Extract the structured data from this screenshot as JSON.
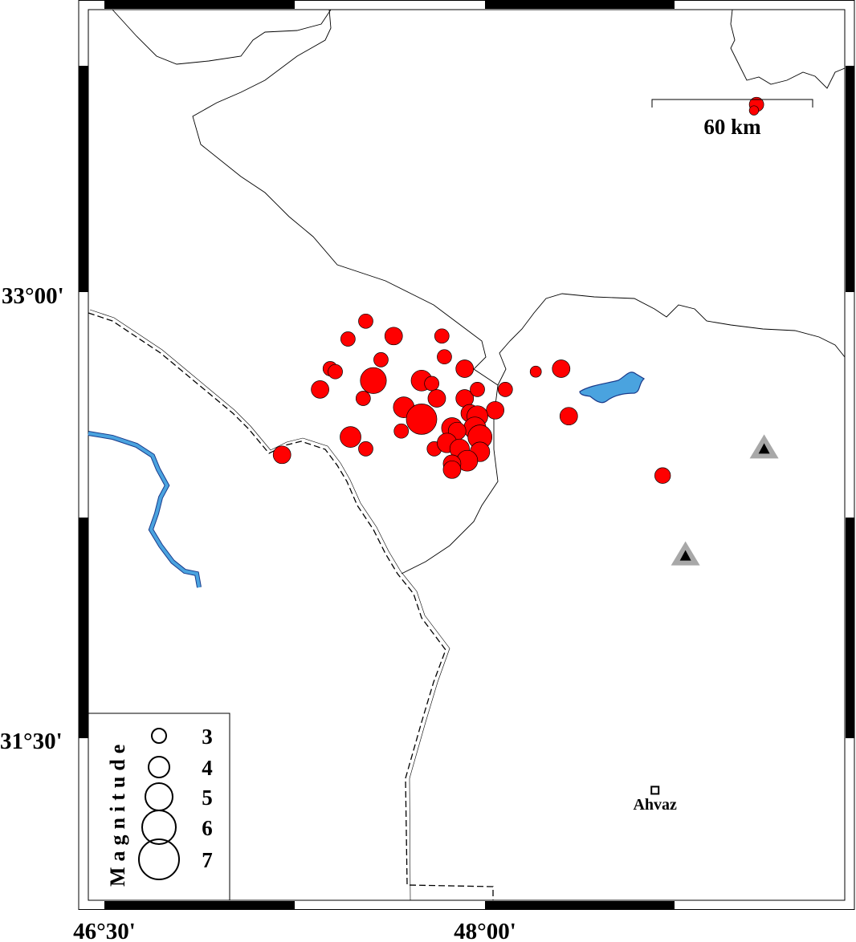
{
  "map": {
    "axis_labels": {
      "lat": [
        {
          "value": 33.0,
          "label": "33°00'"
        },
        {
          "value": 31.5,
          "label": "31°30'"
        }
      ],
      "lon": [
        {
          "value": 46.5,
          "label": "46°30'"
        },
        {
          "value": 48.0,
          "label": "48°00'"
        }
      ]
    },
    "scale_bar": {
      "label": "60 km"
    },
    "city": {
      "name": "Ahvaz",
      "lon": 48.67,
      "lat": 31.33
    },
    "stations": [
      {
        "lon": 49.1,
        "lat": 32.48
      },
      {
        "lon": 48.79,
        "lat": 32.12
      }
    ],
    "colors": {
      "event": "#ff0000",
      "water": "#4aa3df",
      "station": "#a8a8a8"
    },
    "legend": {
      "title": "Magnitude",
      "items": [
        {
          "mag": 3,
          "label": "3"
        },
        {
          "mag": 4,
          "label": "4"
        },
        {
          "mag": 5,
          "label": "5"
        },
        {
          "mag": 6,
          "label": "6"
        },
        {
          "mag": 7,
          "label": "7"
        }
      ]
    },
    "events": [
      {
        "lon": 47.53,
        "lat": 32.91,
        "mag": 3.0
      },
      {
        "lon": 47.46,
        "lat": 32.85,
        "mag": 3.0
      },
      {
        "lon": 47.64,
        "lat": 32.86,
        "mag": 3.5
      },
      {
        "lon": 47.83,
        "lat": 32.86,
        "mag": 3.0
      },
      {
        "lon": 47.59,
        "lat": 32.78,
        "mag": 3.0
      },
      {
        "lon": 47.84,
        "lat": 32.79,
        "mag": 3.0
      },
      {
        "lon": 47.39,
        "lat": 32.75,
        "mag": 3.0
      },
      {
        "lon": 47.41,
        "lat": 32.74,
        "mag": 3.0
      },
      {
        "lon": 47.56,
        "lat": 32.71,
        "mag": 4.8
      },
      {
        "lon": 47.92,
        "lat": 32.75,
        "mag": 3.5
      },
      {
        "lon": 47.35,
        "lat": 32.68,
        "mag": 3.5
      },
      {
        "lon": 47.52,
        "lat": 32.65,
        "mag": 3.0
      },
      {
        "lon": 47.75,
        "lat": 32.71,
        "mag": 4.0
      },
      {
        "lon": 47.79,
        "lat": 32.7,
        "mag": 3.0
      },
      {
        "lon": 47.81,
        "lat": 32.65,
        "mag": 3.5
      },
      {
        "lon": 47.92,
        "lat": 32.65,
        "mag": 3.5
      },
      {
        "lon": 47.97,
        "lat": 32.68,
        "mag": 3.0
      },
      {
        "lon": 48.08,
        "lat": 32.68,
        "mag": 3.0
      },
      {
        "lon": 48.2,
        "lat": 32.74,
        "mag": 2.5
      },
      {
        "lon": 48.3,
        "lat": 32.75,
        "mag": 3.5
      },
      {
        "lon": 48.33,
        "lat": 32.59,
        "mag": 3.5
      },
      {
        "lon": 47.68,
        "lat": 32.62,
        "mag": 4.0
      },
      {
        "lon": 47.75,
        "lat": 32.58,
        "mag": 5.5
      },
      {
        "lon": 48.04,
        "lat": 32.61,
        "mag": 3.5
      },
      {
        "lon": 47.47,
        "lat": 32.52,
        "mag": 4.0
      },
      {
        "lon": 47.53,
        "lat": 32.48,
        "mag": 3.0
      },
      {
        "lon": 47.67,
        "lat": 32.54,
        "mag": 3.0
      },
      {
        "lon": 47.8,
        "lat": 32.48,
        "mag": 3.0
      },
      {
        "lon": 47.94,
        "lat": 32.6,
        "mag": 3.5
      },
      {
        "lon": 47.97,
        "lat": 32.59,
        "mag": 4.0
      },
      {
        "lon": 47.96,
        "lat": 32.55,
        "mag": 4.2
      },
      {
        "lon": 47.87,
        "lat": 32.55,
        "mag": 4.0
      },
      {
        "lon": 47.89,
        "lat": 32.54,
        "mag": 3.5
      },
      {
        "lon": 47.98,
        "lat": 32.52,
        "mag": 4.5
      },
      {
        "lon": 47.85,
        "lat": 32.5,
        "mag": 3.8
      },
      {
        "lon": 47.9,
        "lat": 32.48,
        "mag": 3.8
      },
      {
        "lon": 47.98,
        "lat": 32.47,
        "mag": 3.8
      },
      {
        "lon": 47.93,
        "lat": 32.44,
        "mag": 4.0
      },
      {
        "lon": 47.87,
        "lat": 32.43,
        "mag": 3.5
      },
      {
        "lon": 47.87,
        "lat": 32.41,
        "mag": 3.5
      },
      {
        "lon": 47.2,
        "lat": 32.46,
        "mag": 3.5
      },
      {
        "lon": 48.7,
        "lat": 32.39,
        "mag": 3.2
      },
      {
        "lon": 49.07,
        "lat": 33.64,
        "mag": 3.0
      },
      {
        "lon": 49.06,
        "lat": 33.62,
        "mag": 2.2
      }
    ]
  }
}
